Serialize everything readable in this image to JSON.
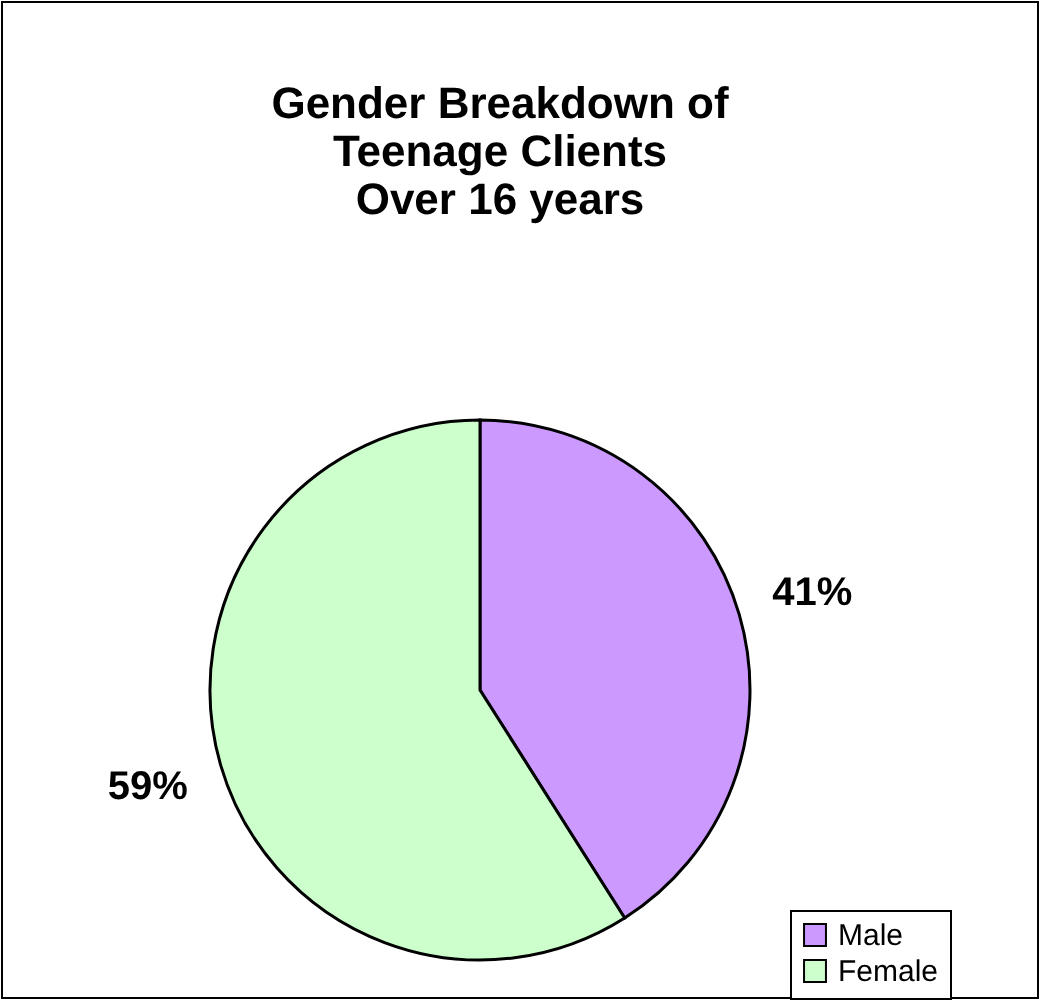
{
  "chart_data": {
    "type": "pie",
    "title": "Gender Breakdown of\nTeenage Clients\nOver 16 years",
    "categories": [
      "Male",
      "Female"
    ],
    "values": [
      41,
      59
    ],
    "colors": [
      "#cc99ff",
      "#ccffcc"
    ],
    "value_labels": [
      "41%",
      "59%"
    ],
    "legend": "bottom right"
  }
}
